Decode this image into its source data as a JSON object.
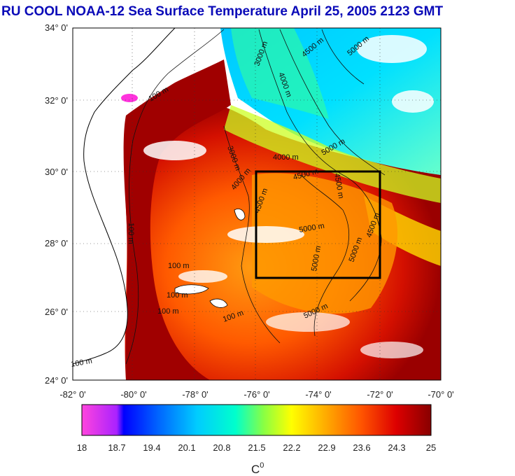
{
  "title": "RU COOL  NOAA-12 Sea Surface Temperature April 25, 2005 2123 GMT",
  "axes": {
    "lat_ticks": [
      "34° 0'",
      "32° 0'",
      "30° 0'",
      "28° 0'",
      "26° 0'",
      "24° 0'"
    ],
    "lon_ticks": [
      "-82° 0'",
      "-80° 0'",
      "-78° 0'",
      "-76° 0'",
      "-74° 0'",
      "-72° 0'",
      "-70° 0'"
    ]
  },
  "contour_labels": [
    "3000 m",
    "4500 m",
    "5000 m",
    "4000 m",
    "100 m",
    "3000 m",
    "4000 m",
    "5000 m",
    "4500 m",
    "4500 m",
    "4000 m",
    "4500 m",
    "5000 m",
    "4500 m",
    "5000 m",
    "100 m",
    "100 m",
    "100 m",
    "100 m",
    "100 m",
    "5000 m",
    "5000 m",
    "100 m"
  ],
  "colorbar": {
    "ticks": [
      "18",
      "18.7",
      "19.4",
      "20.1",
      "20.8",
      "21.5",
      "22.2",
      "22.9",
      "23.6",
      "24.3",
      "25"
    ],
    "unit": "C",
    "unit_sup": "0",
    "colors": [
      "#ff33dd",
      "#0000ff",
      "#0099ff",
      "#00eeff",
      "#66ff88",
      "#eeff00",
      "#ffbb00",
      "#ff7700",
      "#ff2200",
      "#cc0000",
      "#8b0000"
    ]
  },
  "box": {
    "lon": [
      -76,
      -72
    ],
    "lat": [
      27,
      30
    ]
  },
  "colors": {
    "title": "#0a0ab8",
    "box": "#000000",
    "land": "#ffffff"
  }
}
